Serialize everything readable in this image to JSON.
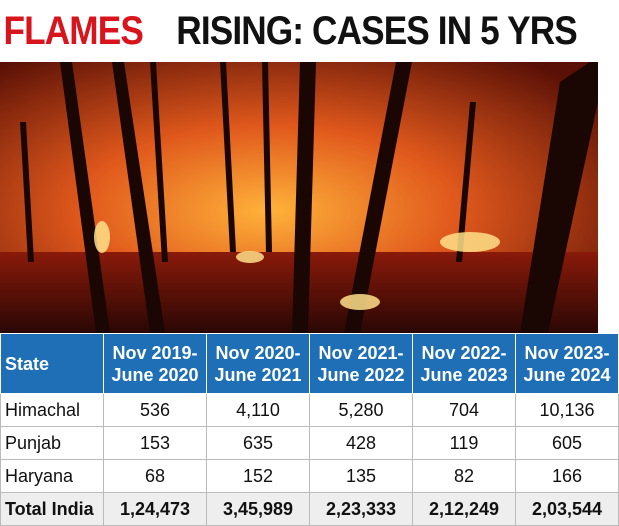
{
  "header": {
    "title_highlight": "FLAMES",
    "title_rest": "RISING: CASES IN 5 YRS"
  },
  "table": {
    "columns": [
      "State",
      "Nov 2019-\nJune 2020",
      "Nov 2020-\nJune 2021",
      "Nov 2021-\nJune 2022",
      "Nov 2022-\nJune 2023",
      "Nov 2023-\nJune 2024"
    ],
    "rows": [
      [
        "Himachal",
        "536",
        "4,110",
        "5,280",
        "704",
        "10,136"
      ],
      [
        "Punjab",
        "153",
        "635",
        "428",
        "119",
        "605"
      ],
      [
        "Haryana",
        "68",
        "152",
        "135",
        "82",
        "166"
      ],
      [
        "Total India",
        "1,24,473",
        "3,45,989",
        "2,23,333",
        "2,12,249",
        "2,03,544"
      ]
    ]
  }
}
